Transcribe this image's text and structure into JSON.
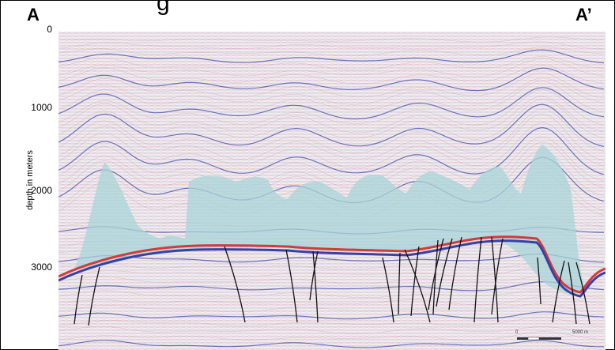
{
  "title_fragment": "g",
  "endpoints": {
    "left": "A",
    "right": "A’"
  },
  "y_axis": {
    "label": "depth in meters",
    "ticks": [
      "0",
      "1000",
      "2000",
      "3000"
    ]
  },
  "scale_bar": {
    "zero": "0",
    "distance": "5000 m"
  },
  "colors": {
    "salt_fill": "#a8d4d8",
    "fault_line": "#111111",
    "reflector_red": "#d33a3a",
    "reflector_blue": "#3840a8",
    "background": "#f3eef0"
  }
}
